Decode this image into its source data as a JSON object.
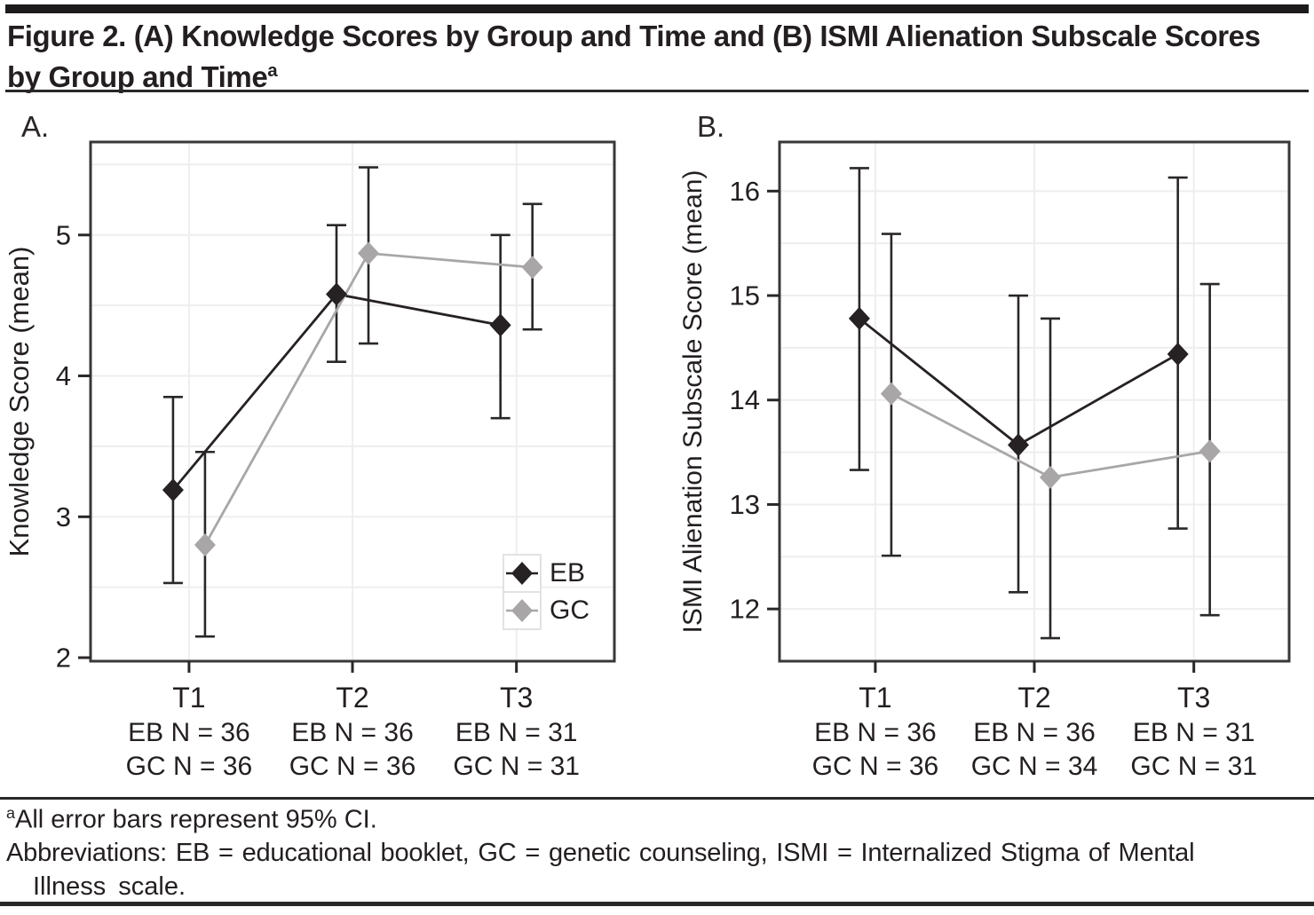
{
  "header": {
    "title_line1": "Figure 2. (A) Knowledge Scores by Group and Time and (B) ISMI Alienation Subscale Scores",
    "title_line2": "by Group and Time",
    "title_superscript": "a"
  },
  "colors": {
    "eb_series": "#262223",
    "gc_series": "#a8a6a7",
    "error_bar": "#2a2728",
    "plot_border": "#3a3738",
    "gridline": "#efeeee",
    "text": "#231f20",
    "legend_border": "#e3e2e2"
  },
  "legend": {
    "position": "inside lower-right of panel A",
    "items": [
      {
        "label": "EB",
        "color": "#262223"
      },
      {
        "label": "GC",
        "color": "#a8a6a7"
      }
    ]
  },
  "chart_data": [
    {
      "type": "line",
      "panel_label": "A.",
      "title": "Knowledge Scores by Group and Time",
      "xlabel": "",
      "ylabel": "Knowledge Score (mean)",
      "categories": [
        "T1",
        "T2",
        "T3"
      ],
      "category_sublabels": [
        [
          "EB N = 36",
          "GC N = 36"
        ],
        [
          "EB N = 36",
          "GC N = 36"
        ],
        [
          "EB N = 31",
          "GC N = 31"
        ]
      ],
      "yticks": [
        2,
        3,
        4,
        5
      ],
      "ylim": [
        1.975,
        5.66
      ],
      "grid_step": 0.5,
      "grid": "on",
      "error_bars": "95% CI",
      "series": [
        {
          "name": "EB",
          "color": "#262223",
          "marker": "diamond",
          "values": [
            3.19,
            4.58,
            4.36
          ],
          "ci_low": [
            2.53,
            4.1,
            3.7
          ],
          "ci_high": [
            3.85,
            5.07,
            5.0
          ]
        },
        {
          "name": "GC",
          "color": "#a8a6a7",
          "marker": "diamond",
          "values": [
            2.8,
            4.87,
            4.77
          ],
          "ci_low": [
            2.15,
            4.23,
            4.33
          ],
          "ci_high": [
            3.46,
            5.48,
            5.22
          ]
        }
      ]
    },
    {
      "type": "line",
      "panel_label": "B.",
      "title": "ISMI Alienation Subscale Scores by Group and Time",
      "xlabel": "",
      "ylabel": "ISMI Alienation Subscale Score (mean)",
      "categories": [
        "T1",
        "T2",
        "T3"
      ],
      "category_sublabels": [
        [
          "EB N = 36",
          "GC N = 36"
        ],
        [
          "EB N = 36",
          "GC N = 34"
        ],
        [
          "EB N = 31",
          "GC N = 31"
        ]
      ],
      "yticks": [
        12,
        13,
        14,
        15,
        16
      ],
      "ylim": [
        11.5,
        16.47
      ],
      "grid_step": 0.5,
      "grid": "on",
      "error_bars": "95% CI",
      "series": [
        {
          "name": "EB",
          "color": "#262223",
          "marker": "diamond",
          "values": [
            14.78,
            13.57,
            14.44
          ],
          "ci_low": [
            13.33,
            12.16,
            12.77
          ],
          "ci_high": [
            16.22,
            15.0,
            16.13
          ]
        },
        {
          "name": "GC",
          "color": "#a8a6a7",
          "marker": "diamond",
          "values": [
            14.06,
            13.26,
            13.51
          ],
          "ci_low": [
            12.51,
            11.72,
            11.94
          ],
          "ci_high": [
            15.59,
            14.78,
            15.11
          ]
        }
      ]
    }
  ],
  "footnotes": {
    "note1_sup": "a",
    "note1": "All error bars represent 95% CI.",
    "note2": "Abbreviations: EB = educational booklet, GC = genetic counseling, ISMI = Internalized  Stigma  of  Mental",
    "note3": "Illness  scale."
  }
}
